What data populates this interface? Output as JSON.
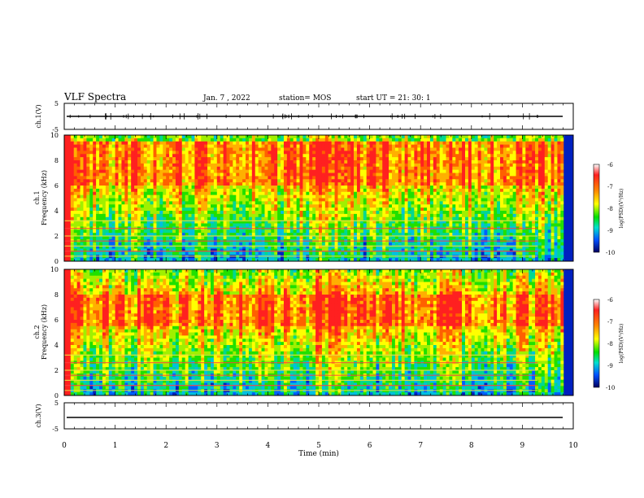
{
  "header": {
    "title": "VLF Spectra",
    "date": "Jan. 7 , 2022",
    "station": "station= MOS",
    "start_ut": "start UT =  21: 30: 1"
  },
  "colorscale": {
    "label": "log(PSD)(V²/Hz)",
    "ticks": [
      "-6",
      "-7",
      "-8",
      "-9",
      "-10"
    ],
    "stops": [
      "#ffffff",
      "#ff2020",
      "#ff8800",
      "#ffff00",
      "#00e000",
      "#00e0d0",
      "#0050ff",
      "#000060"
    ]
  },
  "chart_data": [
    {
      "type": "line",
      "name": "ch1-waveform",
      "ylabel": "ch.1(V)",
      "ylim": [
        -5,
        5
      ],
      "yticks": [
        "5",
        "-5"
      ],
      "xlim": [
        0,
        10
      ],
      "approx_level": -0.3
    },
    {
      "type": "heatmap",
      "name": "ch1-spectrogram",
      "ylabel_channel": "ch.1",
      "ylabel": "Frequency (kHz)",
      "ylim": [
        0,
        10
      ],
      "yticks": [
        "0",
        "2",
        "4",
        "6",
        "8",
        "10"
      ],
      "xlim": [
        0,
        10
      ],
      "zlim": [
        -10,
        -6
      ],
      "peak_band_khz": [
        6,
        9.5
      ],
      "strong_period_min": [
        4.9,
        5.4
      ],
      "data_end_min": 9.8
    },
    {
      "type": "heatmap",
      "name": "ch2-spectrogram",
      "ylabel_channel": "ch.2",
      "ylabel": "Frequency (kHz)",
      "ylim": [
        0,
        10
      ],
      "yticks": [
        "0",
        "2",
        "4",
        "6",
        "8",
        "10"
      ],
      "xlim": [
        0,
        10
      ],
      "zlim": [
        -10,
        -6
      ],
      "peak_band_khz": [
        5.5,
        8
      ],
      "strong_period_min": [
        4.9,
        5.4
      ],
      "data_end_min": 9.8
    },
    {
      "type": "line",
      "name": "ch3-waveform",
      "ylabel": "ch.3(V)",
      "ylim": [
        -5,
        5
      ],
      "yticks": [
        "5",
        "-5"
      ],
      "xlim": [
        0,
        10
      ],
      "approx_level": -0.6
    }
  ],
  "xaxis": {
    "label": "Time (min)",
    "ticks": [
      "0",
      "1",
      "2",
      "3",
      "4",
      "5",
      "6",
      "7",
      "8",
      "9",
      "10"
    ]
  }
}
